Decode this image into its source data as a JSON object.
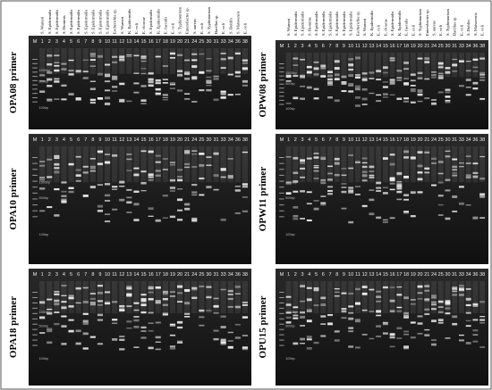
{
  "lanes": [
    "M",
    "1",
    "2",
    "3",
    "4",
    "5",
    "6",
    "7",
    "8",
    "9",
    "10",
    "11",
    "12",
    "13",
    "14",
    "15",
    "16",
    "17",
    "18",
    "19",
    "20",
    "21",
    "24",
    "25",
    "30",
    "31",
    "33",
    "34",
    "36",
    "38"
  ],
  "species": [
    "S. Warneri",
    "S. Epidermidis",
    "S. Epidermidis",
    "S. Hominis",
    "S. Epidermidis",
    "S. Epidermidis",
    "S. Epidermidis",
    "S. Epidermidis",
    "S. Epidermidis",
    "S. Epidermidis",
    "Escherichia sp.",
    "S. Warneri",
    "K. Epidermidis",
    "E. coli",
    "E. cloacae",
    "S. Epidermidis",
    "K. Epidermidis",
    "E. faecalis",
    "E. coli",
    "S. Typhimurium",
    "Enterobacter sp.",
    "S. aureus",
    "E. coli",
    "S. Typhimurium",
    "Bacillus sp.",
    "E. coli",
    "S. Dublin",
    "S. Matsoensis",
    "E. coli"
  ],
  "panels": [
    {
      "primer": "OPA08 primer",
      "markers": [
        "1500bp",
        "500bp",
        "100bp"
      ]
    },
    {
      "primer": "OPA10 primer",
      "markers": [
        "1500bp",
        "500bp",
        "100bp"
      ]
    },
    {
      "primer": "OPA18 primer",
      "markers": [
        "1500bp",
        "500bp",
        "100bp"
      ]
    },
    {
      "primer": "OPW08 primer",
      "markers": [
        "1500bp",
        "500bp",
        "100bp"
      ]
    },
    {
      "primer": "OPW11 primer",
      "markers": [
        "1500bp",
        "500bp",
        "100bp"
      ]
    },
    {
      "primer": "OPU15 primer",
      "markers": [
        "1500bp",
        "500bp",
        "100bp"
      ]
    }
  ]
}
